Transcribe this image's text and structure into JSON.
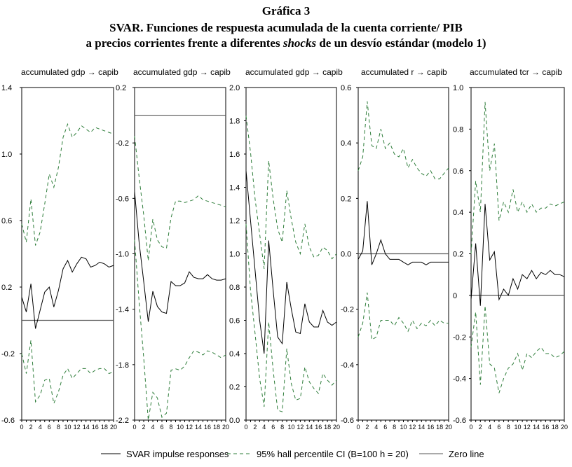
{
  "title": {
    "line1": "Gráfica 3",
    "line2": "SVAR. Funciones de respuesta acumulada de la cuenta corriente/ PIB",
    "line3_pre": "a precios corrientes frente a diferentes ",
    "line3_italic": "shocks",
    "line3_post": " de un desvío estándar (modelo 1)"
  },
  "legend": {
    "irf": "SVAR impulse responses",
    "ci": "95%  hall percentile CI (B=100 h = 20)",
    "zero": "Zero line"
  },
  "colors": {
    "irf": "#000000",
    "ci": "#2e7d3a",
    "zero": "#555555",
    "axis": "#000000"
  },
  "chart_data": [
    {
      "type": "line",
      "title": "accumulated gdp → capib",
      "x": [
        0,
        1,
        2,
        3,
        4,
        5,
        6,
        7,
        8,
        9,
        10,
        11,
        12,
        13,
        14,
        15,
        16,
        17,
        18,
        19,
        20
      ],
      "ylim": [
        -0.6,
        1.4
      ],
      "yticks": [
        -0.6,
        -0.2,
        0.2,
        0.6,
        1.0,
        1.4
      ],
      "ytick_labels": [
        "-0.6",
        "-0.2",
        "0.2",
        "0.6",
        "1.0",
        "1.4"
      ],
      "zero_line": 0,
      "series": [
        {
          "role": "irf",
          "values": [
            0.14,
            0.05,
            0.22,
            -0.05,
            0.06,
            0.17,
            0.2,
            0.08,
            0.18,
            0.31,
            0.36,
            0.29,
            0.34,
            0.38,
            0.37,
            0.32,
            0.33,
            0.35,
            0.34,
            0.32,
            0.33
          ]
        },
        {
          "role": "ci_upper",
          "values": [
            0.58,
            0.47,
            0.73,
            0.45,
            0.53,
            0.7,
            0.88,
            0.8,
            0.92,
            1.1,
            1.18,
            1.1,
            1.13,
            1.17,
            1.15,
            1.13,
            1.16,
            1.15,
            1.14,
            1.13,
            1.12
          ]
        },
        {
          "role": "ci_lower",
          "values": [
            -0.2,
            -0.32,
            -0.12,
            -0.49,
            -0.45,
            -0.36,
            -0.35,
            -0.5,
            -0.43,
            -0.33,
            -0.29,
            -0.35,
            -0.32,
            -0.29,
            -0.29,
            -0.32,
            -0.3,
            -0.29,
            -0.29,
            -0.32,
            -0.31
          ]
        }
      ]
    },
    {
      "type": "line",
      "title": "accumulated gdp → capib",
      "x": [
        0,
        1,
        2,
        3,
        4,
        5,
        6,
        7,
        8,
        9,
        10,
        11,
        12,
        13,
        14,
        15,
        16,
        17,
        18,
        19,
        20
      ],
      "ylim": [
        -2.2,
        0.2
      ],
      "yticks": [
        -2.2,
        -1.8,
        -1.4,
        -1.0,
        -0.6,
        -0.2,
        0.2
      ],
      "ytick_labels": [
        "-2.2",
        "-1.8",
        "-1.4",
        "-1.0",
        "-0.6",
        "-0.2",
        "0.2"
      ],
      "zero_line": 0,
      "series": [
        {
          "role": "irf",
          "values": [
            -0.55,
            -0.92,
            -1.2,
            -1.49,
            -1.27,
            -1.38,
            -1.42,
            -1.43,
            -1.2,
            -1.23,
            -1.23,
            -1.21,
            -1.13,
            -1.17,
            -1.18,
            -1.18,
            -1.15,
            -1.18,
            -1.19,
            -1.19,
            -1.18
          ]
        },
        {
          "role": "ci_upper",
          "values": [
            -0.15,
            -0.45,
            -0.72,
            -1.05,
            -0.75,
            -0.9,
            -0.95,
            -0.96,
            -0.74,
            -0.62,
            -0.62,
            -0.63,
            -0.62,
            -0.61,
            -0.58,
            -0.61,
            -0.62,
            -0.63,
            -0.64,
            -0.65,
            -0.66
          ]
        },
        {
          "role": "ci_lower",
          "values": [
            -0.9,
            -1.35,
            -1.75,
            -2.2,
            -2.0,
            -2.04,
            -2.18,
            -2.15,
            -1.84,
            -1.83,
            -1.84,
            -1.81,
            -1.75,
            -1.7,
            -1.71,
            -1.73,
            -1.7,
            -1.71,
            -1.73,
            -1.75,
            -1.73
          ]
        }
      ]
    },
    {
      "type": "line",
      "title": "accumulated gdp → capib",
      "x": [
        0,
        1,
        2,
        3,
        4,
        5,
        6,
        7,
        8,
        9,
        10,
        11,
        12,
        13,
        14,
        15,
        16,
        17,
        18,
        19,
        20
      ],
      "ylim": [
        0.0,
        2.0
      ],
      "yticks": [
        0.0,
        0.2,
        0.4,
        0.6,
        0.8,
        1.0,
        1.2,
        1.4,
        1.6,
        1.8,
        2.0
      ],
      "ytick_labels": [
        "0.0",
        "0.2",
        "0.4",
        "0.6",
        "0.8",
        "1.0",
        "1.2",
        "1.4",
        "1.6",
        "1.8",
        "2.0"
      ],
      "zero_line": null,
      "series": [
        {
          "role": "irf",
          "values": [
            1.5,
            1.2,
            0.9,
            0.6,
            0.4,
            1.08,
            0.78,
            0.5,
            0.46,
            0.83,
            0.67,
            0.53,
            0.52,
            0.7,
            0.59,
            0.56,
            0.56,
            0.66,
            0.59,
            0.57,
            0.59
          ]
        },
        {
          "role": "ci_upper",
          "values": [
            1.83,
            1.61,
            1.33,
            1.12,
            0.91,
            1.56,
            1.33,
            1.15,
            1.07,
            1.38,
            1.21,
            1.07,
            1.0,
            1.18,
            1.04,
            0.98,
            0.99,
            1.04,
            1.02,
            0.97,
            1.0
          ]
        },
        {
          "role": "ci_lower",
          "values": [
            1.18,
            0.78,
            0.52,
            0.25,
            0.08,
            0.59,
            0.3,
            0.06,
            0.05,
            0.43,
            0.22,
            0.12,
            0.13,
            0.32,
            0.23,
            0.19,
            0.16,
            0.28,
            0.24,
            0.21,
            0.24
          ]
        }
      ]
    },
    {
      "type": "line",
      "title": "accumulated r → capib",
      "x": [
        0,
        1,
        2,
        3,
        4,
        5,
        6,
        7,
        8,
        9,
        10,
        11,
        12,
        13,
        14,
        15,
        16,
        17,
        18,
        19,
        20
      ],
      "ylim": [
        -0.6,
        0.6
      ],
      "yticks": [
        -0.6,
        -0.4,
        -0.2,
        0.0,
        0.2,
        0.4,
        0.6
      ],
      "ytick_labels": [
        "-0.6",
        "-0.4",
        "-0.2",
        "0.0",
        "0.2",
        "0.4",
        "0.6"
      ],
      "zero_line": 0,
      "series": [
        {
          "role": "irf",
          "values": [
            -0.02,
            0.01,
            0.19,
            -0.04,
            0.0,
            0.05,
            0.0,
            -0.02,
            -0.02,
            -0.02,
            -0.03,
            -0.04,
            -0.03,
            -0.03,
            -0.03,
            -0.04,
            -0.03,
            -0.03,
            -0.03,
            -0.03,
            -0.03
          ]
        },
        {
          "role": "ci_upper",
          "values": [
            0.3,
            0.35,
            0.55,
            0.39,
            0.38,
            0.45,
            0.38,
            0.4,
            0.36,
            0.35,
            0.38,
            0.31,
            0.34,
            0.31,
            0.29,
            0.28,
            0.3,
            0.27,
            0.27,
            0.29,
            0.31
          ]
        },
        {
          "role": "ci_lower",
          "values": [
            -0.3,
            -0.25,
            -0.14,
            -0.31,
            -0.3,
            -0.24,
            -0.24,
            -0.24,
            -0.26,
            -0.23,
            -0.25,
            -0.28,
            -0.24,
            -0.27,
            -0.25,
            -0.26,
            -0.24,
            -0.26,
            -0.24,
            -0.25,
            -0.25
          ]
        }
      ]
    },
    {
      "type": "line",
      "title": "accumulated tcr → capib",
      "x": [
        0,
        1,
        2,
        3,
        4,
        5,
        6,
        7,
        8,
        9,
        10,
        11,
        12,
        13,
        14,
        15,
        16,
        17,
        18,
        19,
        20
      ],
      "ylim": [
        -0.6,
        1.0
      ],
      "yticks": [
        -0.6,
        -0.4,
        -0.2,
        0.0,
        0.2,
        0.4,
        0.6,
        0.8,
        1.0
      ],
      "ytick_labels": [
        "-0.6",
        "-0.4",
        "-0.2",
        "0",
        "0.2",
        "0.4",
        "0.6",
        "0.8",
        "1.0"
      ],
      "zero_line": 0,
      "series": [
        {
          "role": "irf",
          "values": [
            -0.02,
            0.25,
            -0.05,
            0.44,
            0.17,
            0.21,
            -0.02,
            0.03,
            0.0,
            0.08,
            0.03,
            0.1,
            0.08,
            0.12,
            0.08,
            0.11,
            0.1,
            0.12,
            0.1,
            0.1,
            0.09
          ]
        },
        {
          "role": "ci_upper",
          "values": [
            0.2,
            0.55,
            0.4,
            0.93,
            0.6,
            0.73,
            0.36,
            0.45,
            0.4,
            0.51,
            0.4,
            0.45,
            0.4,
            0.44,
            0.4,
            0.42,
            0.42,
            0.44,
            0.43,
            0.44,
            0.45
          ]
        },
        {
          "role": "ci_lower",
          "values": [
            -0.25,
            -0.08,
            -0.43,
            -0.05,
            -0.33,
            -0.35,
            -0.47,
            -0.4,
            -0.35,
            -0.33,
            -0.28,
            -0.36,
            -0.28,
            -0.3,
            -0.27,
            -0.25,
            -0.28,
            -0.28,
            -0.3,
            -0.29,
            -0.27
          ]
        }
      ]
    }
  ]
}
